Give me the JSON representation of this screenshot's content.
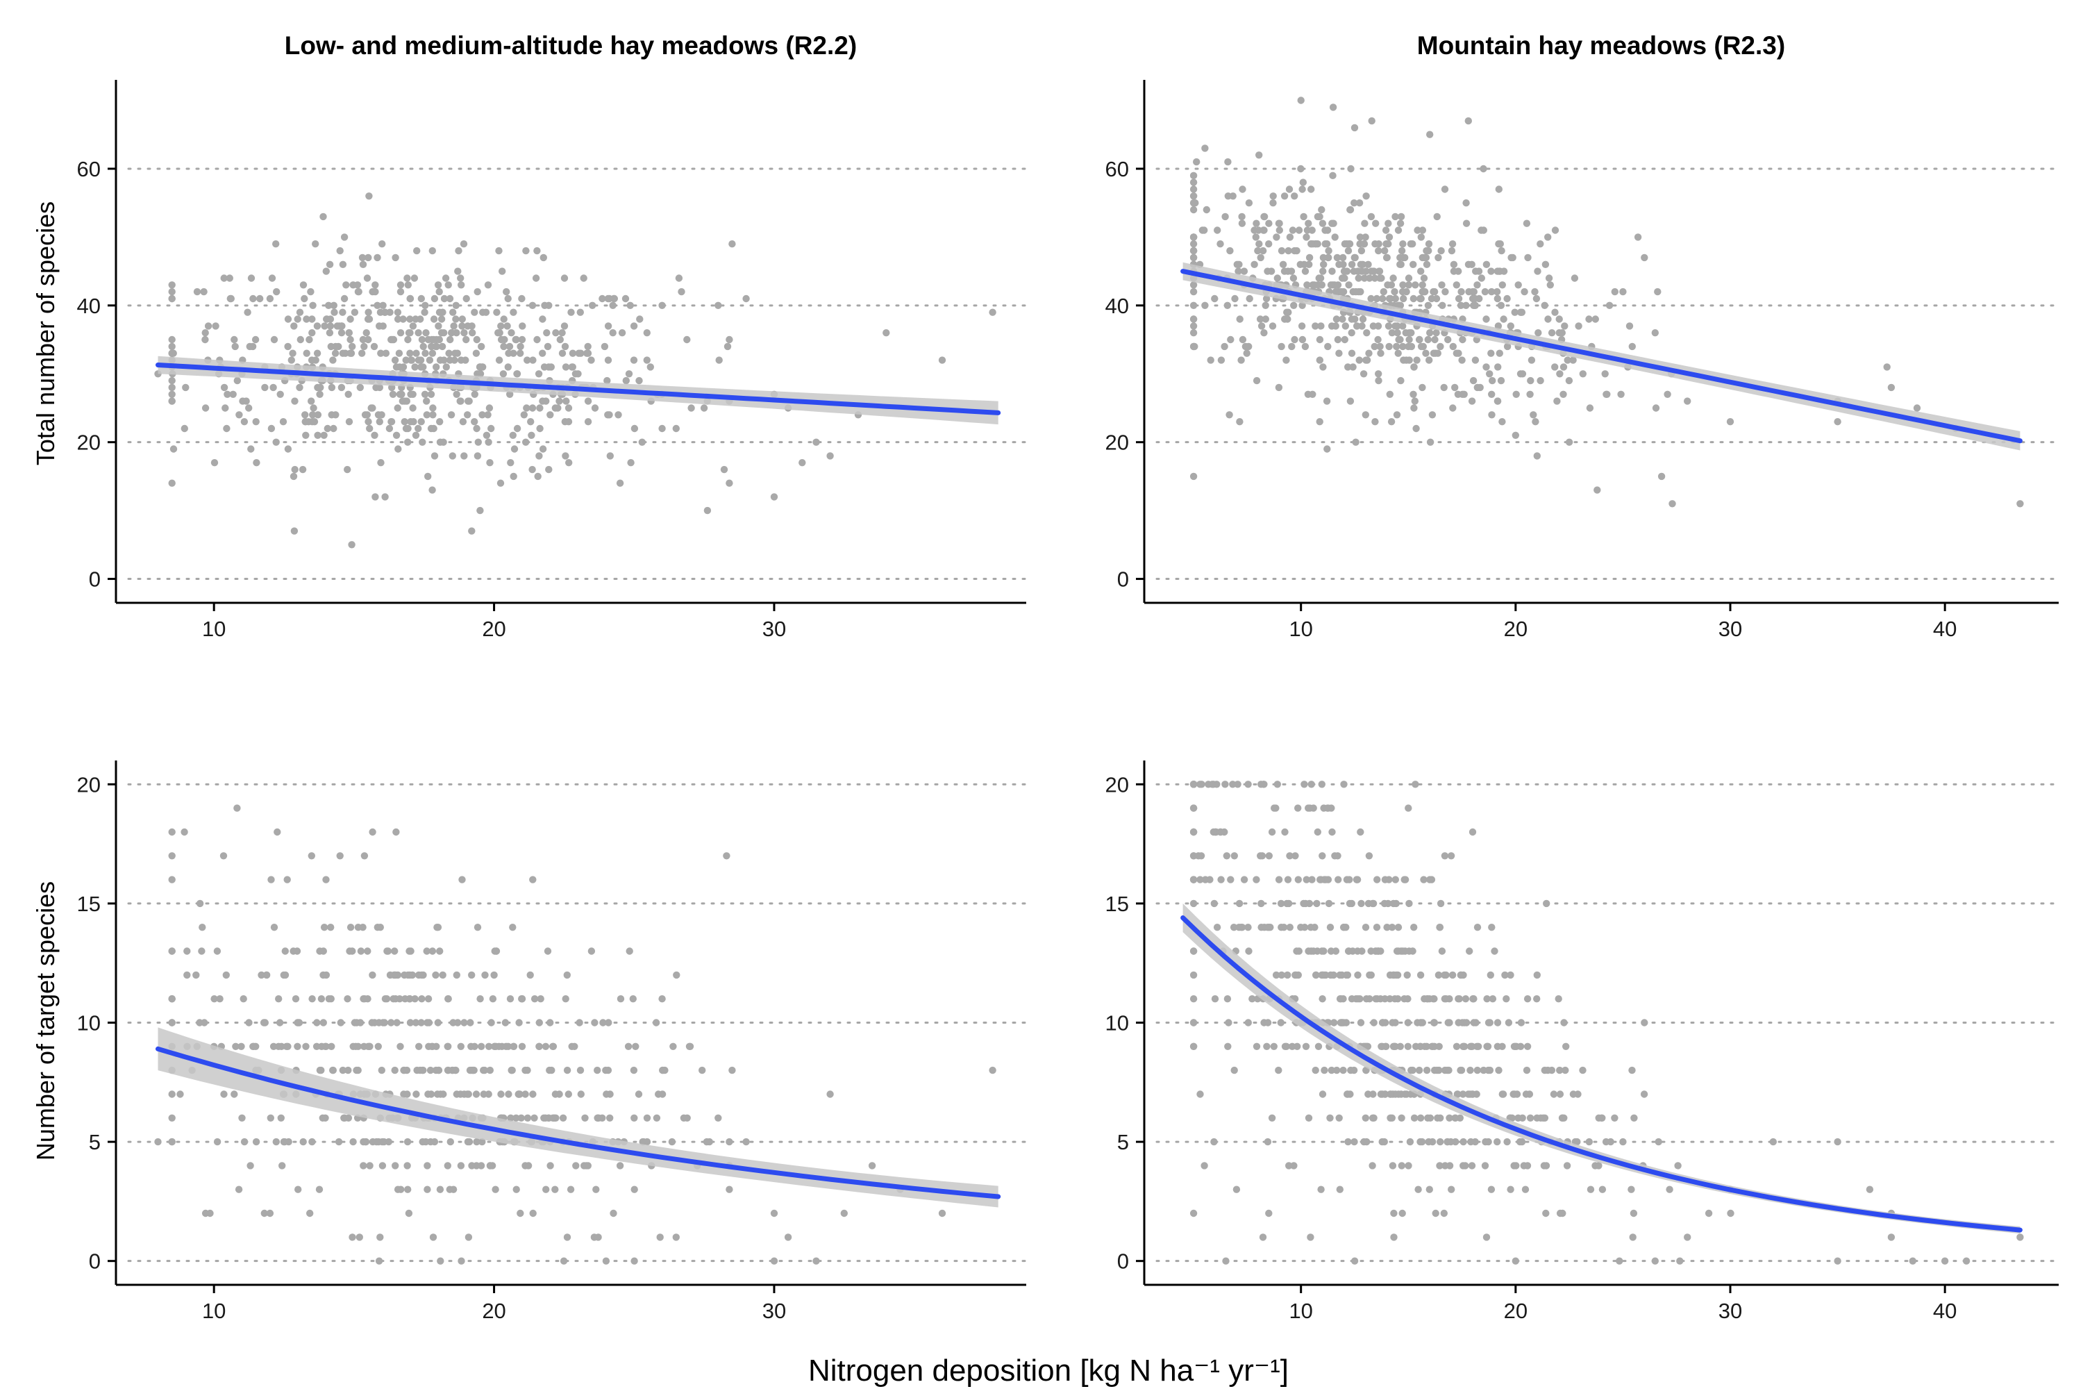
{
  "figure": {
    "xlabel": "Nitrogen deposition [kg N ha⁻¹ yr⁻¹]",
    "colors": {
      "points": "#a9a9a9",
      "fit": "#2d4bef",
      "band": "#c8c8c8",
      "grid": "#a6a6a6"
    }
  },
  "chart_data": [
    {
      "id": "p11",
      "type": "scatter",
      "title": "Low- and medium-altitude hay meadows (R2.2)",
      "ylabel": "Total number of species",
      "xlim": [
        6.5,
        39
      ],
      "ylim": [
        -3.5,
        73
      ],
      "xticks": [
        10,
        20,
        30
      ],
      "yticks": [
        0,
        20,
        40,
        60
      ],
      "grid": "y-dotted",
      "fit": {
        "name": "",
        "kind": "line",
        "x_range": [
          8,
          38
        ],
        "y_start": 31.3,
        "y_end": 24.3,
        "se_start": 1.3,
        "se_end": 1.7
      },
      "cluster": {
        "center_x": 17.5,
        "spread_x": 4.5,
        "n": 600
      },
      "points": [
        [
          8,
          30
        ],
        [
          9.7,
          25
        ],
        [
          9.8,
          37
        ],
        [
          10.2,
          32
        ],
        [
          11,
          30
        ],
        [
          11.5,
          23
        ],
        [
          12,
          41
        ],
        [
          13.9,
          53
        ],
        [
          14.5,
          48
        ],
        [
          15.3,
          47
        ],
        [
          16,
          49
        ],
        [
          17,
          41
        ],
        [
          17.8,
          48
        ],
        [
          18.8,
          44
        ],
        [
          19.5,
          10
        ],
        [
          19.2,
          7
        ],
        [
          20.5,
          41
        ],
        [
          21.5,
          44
        ],
        [
          23.2,
          44
        ],
        [
          24.5,
          14
        ],
        [
          25.2,
          38
        ],
        [
          26,
          40
        ],
        [
          26.5,
          22
        ],
        [
          27.5,
          25
        ],
        [
          28,
          40
        ],
        [
          28.5,
          49
        ],
        [
          29,
          41
        ],
        [
          30,
          12
        ],
        [
          30,
          27
        ],
        [
          30.5,
          25
        ],
        [
          31,
          17
        ],
        [
          31.5,
          20
        ],
        [
          32,
          18
        ],
        [
          33,
          24
        ],
        [
          34,
          36
        ],
        [
          36,
          32
        ],
        [
          37.8,
          39
        ]
      ]
    },
    {
      "id": "p12",
      "type": "scatter",
      "title": "Mountain hay meadows (R2.3)",
      "ylabel": "",
      "xlim": [
        2.7,
        45.3
      ],
      "ylim": [
        -3.5,
        73
      ],
      "xticks": [
        10,
        20,
        30,
        40
      ],
      "yticks": [
        0,
        20,
        40,
        60
      ],
      "grid": "y-dotted",
      "fit": {
        "name": "",
        "kind": "line",
        "x_range": [
          4.5,
          43.5
        ],
        "y_start": 45,
        "y_end": 20.2,
        "se_start": 1.3,
        "se_end": 1.4
      },
      "cluster": {
        "center_x": 13.5,
        "spread_x": 5,
        "n": 650
      },
      "points": [
        [
          5,
          15
        ],
        [
          10,
          70
        ],
        [
          11.5,
          69
        ],
        [
          12.5,
          66
        ],
        [
          13.3,
          67
        ],
        [
          16,
          65
        ],
        [
          17.8,
          67
        ],
        [
          18.5,
          60
        ],
        [
          20,
          21
        ],
        [
          21,
          18
        ],
        [
          22.5,
          20
        ],
        [
          23.8,
          13
        ],
        [
          25,
          42
        ],
        [
          25.7,
          50
        ],
        [
          26,
          47
        ],
        [
          26.5,
          36
        ],
        [
          26.8,
          15
        ],
        [
          27.3,
          11
        ],
        [
          28,
          26
        ],
        [
          30,
          23
        ],
        [
          35,
          26
        ],
        [
          35,
          23
        ],
        [
          37.3,
          31
        ],
        [
          37.5,
          28
        ],
        [
          38.7,
          25
        ],
        [
          40.5,
          22
        ],
        [
          43.5,
          11
        ]
      ]
    },
    {
      "id": "p21",
      "type": "scatter",
      "title": "",
      "ylabel": "Number of target species",
      "xlim": [
        6.5,
        39
      ],
      "ylim": [
        -1,
        21
      ],
      "xticks": [
        10,
        20,
        30
      ],
      "yticks": [
        0,
        5,
        10,
        15,
        20
      ],
      "grid": "y-dotted",
      "fit": {
        "name": "",
        "kind": "exp",
        "x_range": [
          8,
          38
        ],
        "y_start": 8.9,
        "y_end": 2.7,
        "se_start": 0.9,
        "se_end": 0.45
      },
      "cluster": {
        "center_x": 17.5,
        "spread_x": 4.5,
        "n": 520
      },
      "points": [
        [
          8,
          5
        ],
        [
          9.7,
          2
        ],
        [
          10,
          9
        ],
        [
          11,
          6
        ],
        [
          11.3,
          4
        ],
        [
          11.8,
          2
        ],
        [
          12,
          2
        ],
        [
          12.5,
          7
        ],
        [
          13,
          3
        ],
        [
          13.5,
          5
        ],
        [
          14,
          9
        ],
        [
          14.5,
          17
        ],
        [
          14,
          16
        ],
        [
          16.5,
          18
        ],
        [
          18,
          14
        ],
        [
          21,
          11
        ],
        [
          22,
          10
        ],
        [
          24,
          0
        ],
        [
          24.5,
          4
        ],
        [
          25,
          6
        ],
        [
          26,
          11
        ],
        [
          26.5,
          1
        ],
        [
          28,
          6
        ],
        [
          28.3,
          17
        ],
        [
          28.5,
          8
        ],
        [
          29,
          5
        ],
        [
          30,
          0
        ],
        [
          30,
          2
        ],
        [
          30.5,
          1
        ],
        [
          31.5,
          0
        ],
        [
          32,
          7
        ],
        [
          32.5,
          2
        ],
        [
          33.5,
          4
        ],
        [
          34.5,
          3
        ],
        [
          36,
          2
        ],
        [
          37.8,
          8
        ]
      ]
    },
    {
      "id": "p22",
      "type": "scatter",
      "title": "",
      "ylabel": "",
      "xlim": [
        2.7,
        45.3
      ],
      "ylim": [
        -1,
        21
      ],
      "xticks": [
        10,
        20,
        30,
        40
      ],
      "yticks": [
        0,
        5,
        10,
        15,
        20
      ],
      "grid": "y-dotted",
      "fit": {
        "name": "",
        "kind": "exp",
        "x_range": [
          4.5,
          43.5
        ],
        "y_start": 14.4,
        "y_end": 1.3,
        "se_start": 0.6,
        "se_end": 0.15
      },
      "cluster": {
        "center_x": 13.5,
        "spread_x": 5,
        "n": 620
      },
      "points": [
        [
          5,
          16
        ],
        [
          5,
          2
        ],
        [
          5.5,
          4
        ],
        [
          6,
          11
        ],
        [
          6.5,
          0
        ],
        [
          7,
          3
        ],
        [
          8.5,
          2
        ],
        [
          12,
          20
        ],
        [
          15,
          19
        ],
        [
          16,
          16
        ],
        [
          17,
          17
        ],
        [
          18,
          18
        ],
        [
          19.5,
          12
        ],
        [
          20,
          0
        ],
        [
          21,
          12
        ],
        [
          22,
          11
        ],
        [
          23.5,
          3
        ],
        [
          24,
          6
        ],
        [
          25,
          5
        ],
        [
          25.5,
          2
        ],
        [
          26,
          10
        ],
        [
          26.5,
          0
        ],
        [
          28,
          1
        ],
        [
          29,
          2
        ],
        [
          30,
          3
        ],
        [
          32,
          5
        ],
        [
          35,
          0
        ],
        [
          35,
          5
        ],
        [
          36.5,
          3
        ],
        [
          37.5,
          1
        ],
        [
          37.5,
          2
        ],
        [
          38.5,
          0
        ],
        [
          40,
          0
        ],
        [
          41,
          0
        ],
        [
          43.5,
          1
        ]
      ]
    }
  ]
}
